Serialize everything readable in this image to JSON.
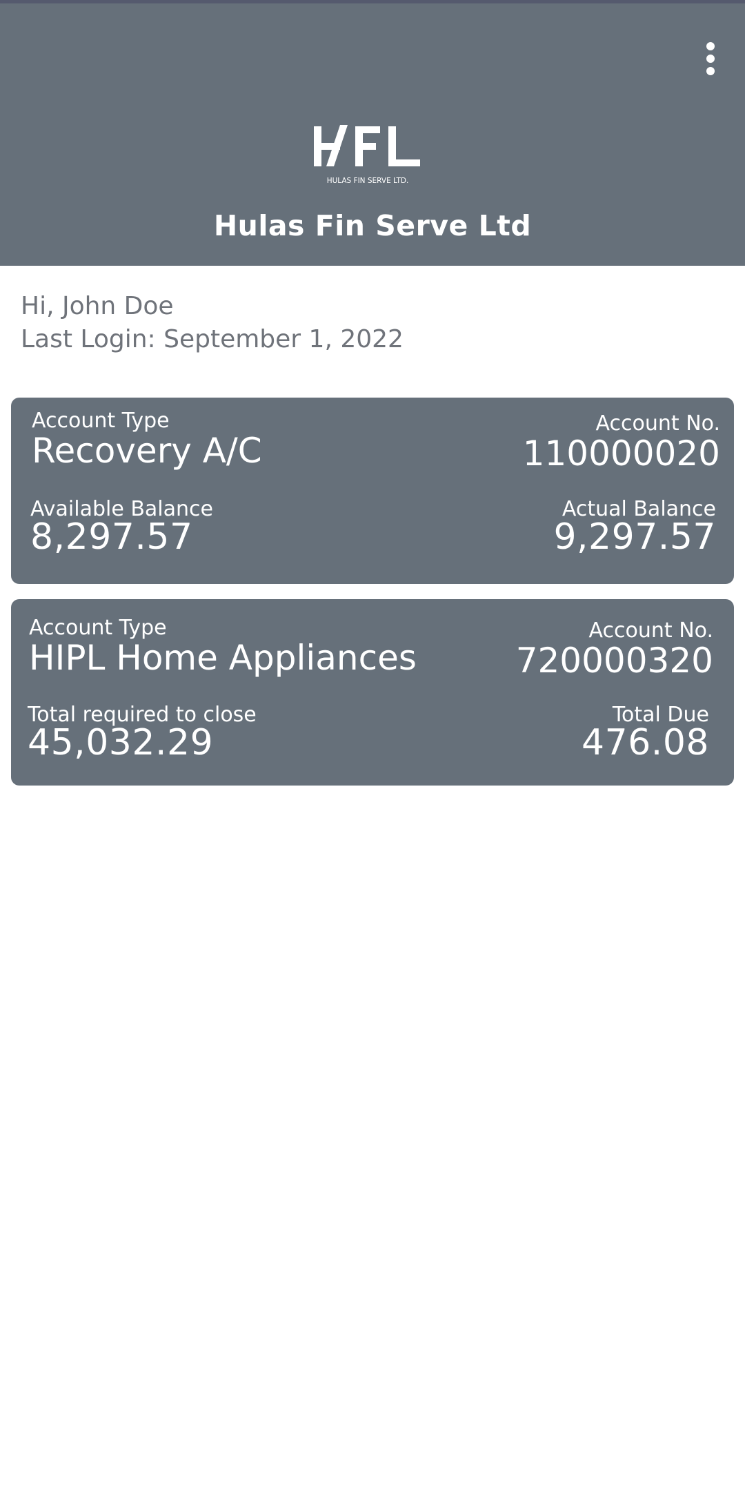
{
  "header": {
    "brand_name": "Hulas Fin Serve Ltd",
    "logo_text": "HFL",
    "logo_subtext": "HULAS FIN SERVE LTD.",
    "menu_icon": "more-vertical-icon"
  },
  "greeting": {
    "hello": "Hi, John Doe",
    "last_login": "Last Login: September 1, 2022"
  },
  "accounts": [
    {
      "type_label": "Account Type",
      "type_value": "Recovery A/C",
      "number_label": "Account No.",
      "number_value": "110000020",
      "left_label": "Available Balance",
      "left_value": "8,297.57",
      "right_label": "Actual Balance",
      "right_value": "9,297.57"
    },
    {
      "type_label": "Account Type",
      "type_value": "HIPL Home Appliances",
      "number_label": "Account No.",
      "number_value": "720000320",
      "left_label": "Total required to close",
      "left_value": "45,032.29",
      "right_label": "Total Due",
      "right_value": "476.08"
    }
  ],
  "colors": {
    "header_bg": "#66707a",
    "card_bg": "#66707a",
    "text_muted": "#6f737a",
    "text_on_dark": "#ffffff"
  }
}
